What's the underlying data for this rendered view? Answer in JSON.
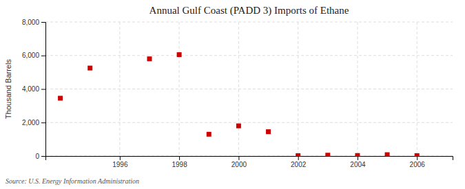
{
  "chart_data": {
    "type": "scatter",
    "title": "Annual Gulf Coast (PADD 3) Imports of Ethane",
    "ylabel": "Thousand Barrels",
    "annotations": [
      "Source: U.S. Energy Information Administration"
    ],
    "x": [
      1994,
      1995,
      1997,
      1998,
      1999,
      2000,
      2001,
      2002,
      2003,
      2004,
      2005,
      2006
    ],
    "values": [
      3450,
      5250,
      5800,
      6050,
      1300,
      1800,
      1450,
      20,
      50,
      30,
      80,
      20
    ],
    "color": "#cc0000",
    "marker": "square",
    "xlim": [
      1993.5,
      2007.2
    ],
    "ylim": [
      0,
      8000
    ],
    "xticks": [
      1996,
      1998,
      2000,
      2002,
      2004,
      2006
    ],
    "yticks": [
      {
        "value": 0,
        "label": "0"
      },
      {
        "value": 2000,
        "label": "2,000"
      },
      {
        "value": 4000,
        "label": "4,000"
      },
      {
        "value": 6000,
        "label": "6,000"
      },
      {
        "value": 8000,
        "label": "8,000"
      }
    ],
    "grid": true
  }
}
